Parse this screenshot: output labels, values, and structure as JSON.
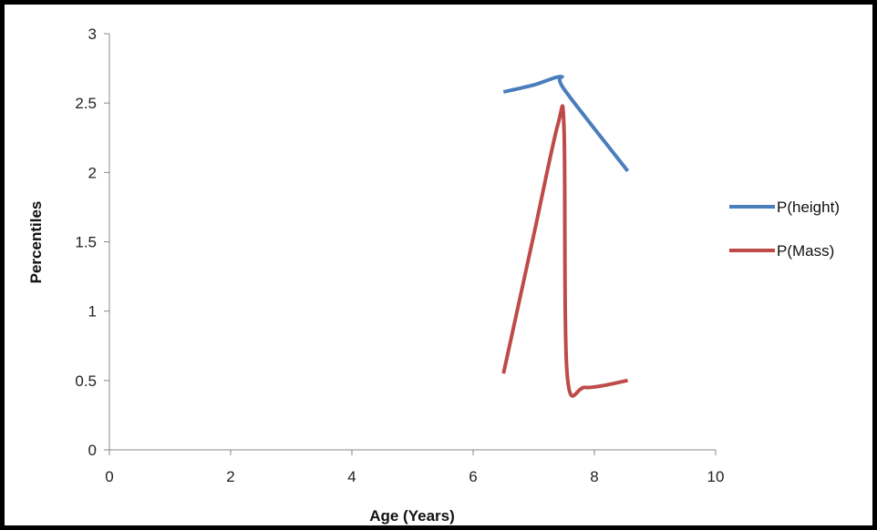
{
  "chart_data": {
    "type": "line",
    "title": "",
    "xlabel": "Age (Years)",
    "ylabel": "Percentiles",
    "xlim": [
      0,
      10
    ],
    "ylim": [
      0,
      3
    ],
    "xticks": [
      "0",
      "2",
      "4",
      "6",
      "8",
      "10"
    ],
    "yticks": [
      "0",
      "0.5",
      "1",
      "1.5",
      "2",
      "2.5",
      "3"
    ],
    "grid": false,
    "legend": "right",
    "series": [
      {
        "name": "P(height)",
        "color": "#4a7ebb",
        "x": [
          6.5,
          7.0,
          7.45,
          7.5,
          8.55
        ],
        "y": [
          2.58,
          2.63,
          2.69,
          2.6,
          2.01
        ]
      },
      {
        "name": "P(Mass)",
        "color": "#be4b48",
        "x": [
          6.5,
          7.0,
          7.4,
          7.5,
          7.55,
          7.85,
          8.55
        ],
        "y": [
          0.55,
          1.55,
          2.35,
          2.3,
          0.55,
          0.45,
          0.5
        ]
      }
    ]
  }
}
